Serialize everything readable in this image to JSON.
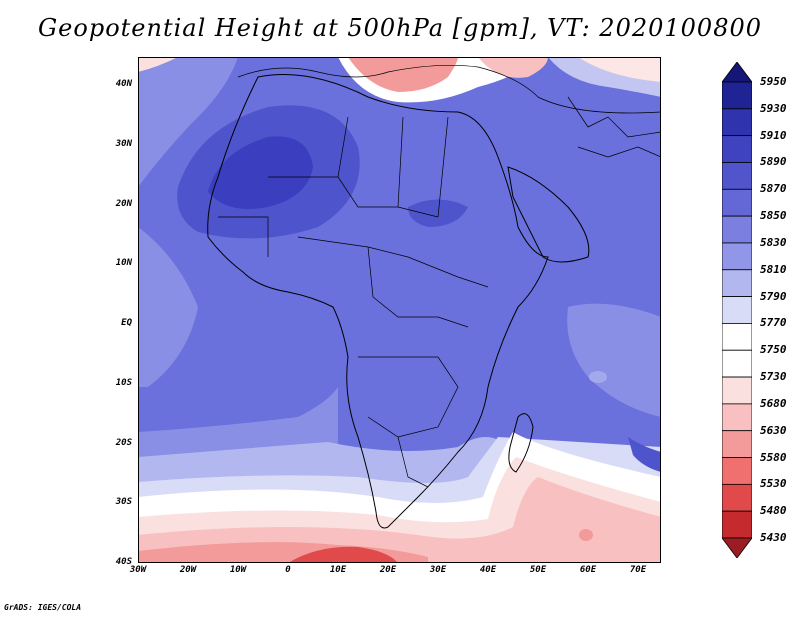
{
  "title": "Geopotential Height at 500hPa [gpm], VT: 2020100800",
  "credit": "GrADS: IGES/COLA",
  "axes": {
    "lat_labels": [
      "40N",
      "30N",
      "20N",
      "10N",
      "EQ",
      "10S",
      "20S",
      "30S",
      "40S"
    ],
    "lon_labels": [
      "30W",
      "20W",
      "10W",
      "0",
      "10E",
      "20E",
      "30E",
      "40E",
      "50E",
      "60E",
      "70E"
    ]
  },
  "colorbar": {
    "levels": [
      "5430",
      "5480",
      "5530",
      "5580",
      "5630",
      "5680",
      "5730",
      "5750",
      "5770",
      "5790",
      "5810",
      "5830",
      "5850",
      "5870",
      "5890",
      "5910",
      "5930",
      "5950"
    ],
    "colors": [
      "#9b1c22",
      "#c42a2e",
      "#e04a4a",
      "#f07070",
      "#f39a9a",
      "#f8c0c0",
      "#fbe0e0",
      "#ffffff",
      "#ffffff",
      "#d9dcf7",
      "#b3b7f0",
      "#9296e8",
      "#7a7fe0",
      "#6368d6",
      "#5055cc",
      "#3f43c0",
      "#2f33ad",
      "#202394",
      "#141678"
    ]
  },
  "colors": {
    "land_border": "#000000",
    "field_dominant": "#6a70dc"
  }
}
